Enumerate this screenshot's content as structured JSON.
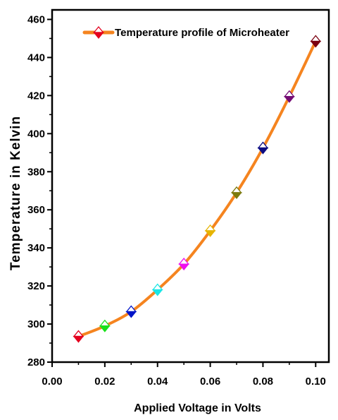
{
  "chart_data": {
    "type": "line",
    "title": "",
    "xlabel": "Applied Voltage in Volts",
    "ylabel": "Temperature in Kelvin",
    "xlim": [
      0.0,
      0.105
    ],
    "ylim": [
      280,
      465
    ],
    "x_ticks": [
      "0.00",
      "0.02",
      "0.04",
      "0.06",
      "0.08",
      "0.10"
    ],
    "x_tick_values": [
      0.0,
      0.02,
      0.04,
      0.06,
      0.08,
      0.1
    ],
    "y_ticks": [
      "280",
      "300",
      "320",
      "340",
      "360",
      "380",
      "400",
      "420",
      "440",
      "460"
    ],
    "y_tick_values": [
      280,
      300,
      320,
      340,
      360,
      380,
      400,
      420,
      440,
      460
    ],
    "grid": false,
    "legend_position": "top-left",
    "series": [
      {
        "name": "Temperature profile of Microheater",
        "color": "#f5841f",
        "x": [
          0.01,
          0.02,
          0.03,
          0.04,
          0.05,
          0.06,
          0.07,
          0.08,
          0.09,
          0.1
        ],
        "y": [
          293.5,
          299,
          306.5,
          318,
          331.5,
          349,
          369,
          392.5,
          419.5,
          448.5
        ],
        "marker": "diamond-half",
        "marker_colors": [
          "#e4001e",
          "#18e01a",
          "#0014c8",
          "#19e6e6",
          "#ee10ee",
          "#e6b400",
          "#7c7a0e",
          "#0c0c82",
          "#740a74",
          "#7a0010"
        ]
      }
    ]
  }
}
